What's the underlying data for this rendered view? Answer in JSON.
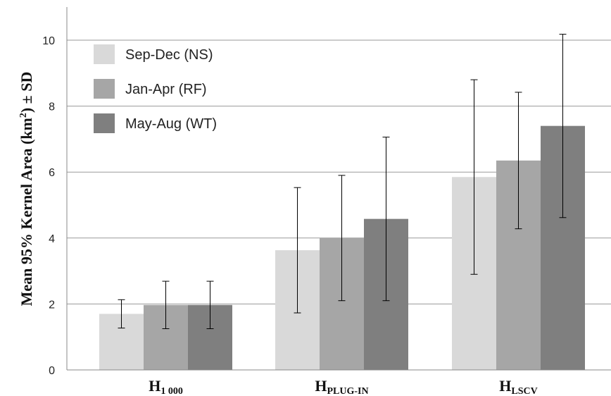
{
  "chart_data": {
    "type": "bar",
    "categories": [
      {
        "main": "H",
        "sub": "1 000"
      },
      {
        "main": "H",
        "sub": "PLUG-IN"
      },
      {
        "main": "H",
        "sub": "LSCV"
      }
    ],
    "series": [
      {
        "name": "Sep-Dec (NS)",
        "color": "#d9d9d9",
        "values": [
          1.7,
          3.63,
          5.85
        ],
        "sd": [
          0.43,
          1.9,
          2.95
        ]
      },
      {
        "name": "Jan-Apr (RF)",
        "color": "#a6a6a6",
        "values": [
          1.97,
          4.0,
          6.35
        ],
        "sd": [
          0.72,
          1.9,
          2.07
        ]
      },
      {
        "name": "May-Aug (WT)",
        "color": "#7f7f7f",
        "values": [
          1.97,
          4.58,
          7.4
        ],
        "sd": [
          0.72,
          2.48,
          2.78
        ]
      }
    ],
    "ylabel": {
      "prefix": "Mean  95% Kernel Area (km",
      "sup": "2",
      "suffix": ") ± SD"
    },
    "ylim": [
      0,
      10
    ],
    "yticks": [
      0,
      2,
      4,
      6,
      8,
      10
    ],
    "grid": true,
    "legend_position": "top-left"
  }
}
